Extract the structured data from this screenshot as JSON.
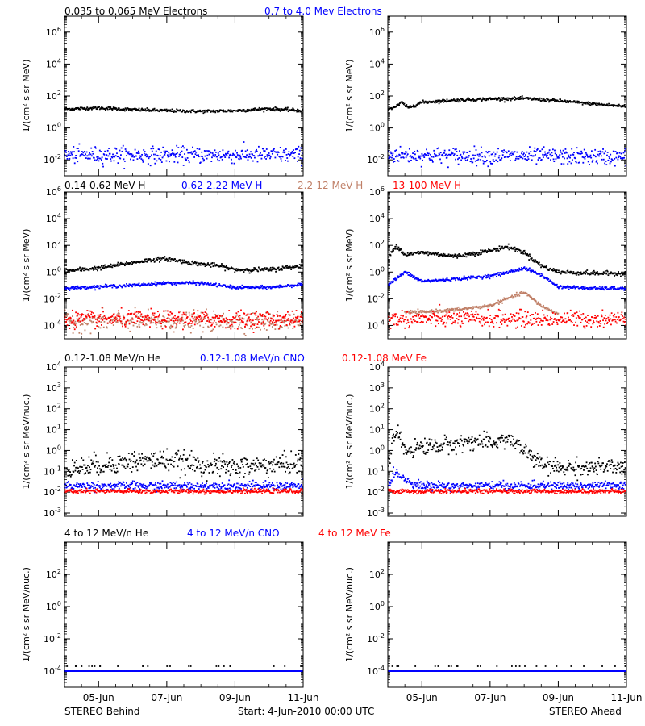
{
  "footer": {
    "left": "STEREO Behind",
    "center": "Start:  4-Jun-2010 00:00 UTC",
    "right": "STEREO Ahead"
  },
  "x_axis": {
    "range": [
      "2010-06-04",
      "2010-06-11"
    ],
    "ticks": [
      "05-Jun",
      "07-Jun",
      "09-Jun",
      "11-Jun"
    ]
  },
  "rows": [
    {
      "ylabel": "1/(cm² s sr MeV)",
      "legend": [
        {
          "text": "0.035 to 0.065 MeV Electrons",
          "color": "#000000"
        },
        {
          "text": "0.7 to 4.0 Mev Electrons",
          "color": "#0000ff"
        }
      ]
    },
    {
      "ylabel": "1/(cm² s sr MeV)",
      "legend": [
        {
          "text": "0.14-0.62 MeV H",
          "color": "#000000"
        },
        {
          "text": "0.62-2.22 MeV H",
          "color": "#0000ff"
        },
        {
          "text": "2.2-12 MeV H",
          "color": "#c08068"
        },
        {
          "text": "13-100 MeV H",
          "color": "#ff0000"
        }
      ]
    },
    {
      "ylabel": "1/(cm² s sr MeV/nuc.)",
      "legend": [
        {
          "text": "0.12-1.08 MeV/n He",
          "color": "#000000"
        },
        {
          "text": "0.12-1.08 MeV/n CNO",
          "color": "#0000ff"
        },
        {
          "text": "0.12-1.08 MeV Fe",
          "color": "#ff0000"
        }
      ]
    },
    {
      "ylabel": "1/(cm² s sr MeV/nuc.)",
      "legend": [
        {
          "text": "4 to 12 MeV/n He",
          "color": "#000000"
        },
        {
          "text": "4 to 12 MeV/n CNO",
          "color": "#0000ff"
        },
        {
          "text": "4 to 12 MeV Fe",
          "color": "#ff0000"
        }
      ]
    }
  ],
  "chart_data": [
    {
      "type": "scatter",
      "panel": "electrons",
      "spacecraft": "STEREO Behind",
      "yscale": "log",
      "ylim": [
        0.001,
        10000000
      ],
      "yticks": [
        {
          "label": "10^-2",
          "value": 0.01
        },
        {
          "label": "10^0",
          "value": 1
        },
        {
          "label": "10^2",
          "value": 100
        },
        {
          "label": "10^4",
          "value": 10000
        },
        {
          "label": "10^6",
          "value": 1000000
        }
      ],
      "series": [
        {
          "name": "0.035 to 0.065 MeV Electrons",
          "color": "#000000",
          "x": [
            "2010-06-04",
            "2010-06-05",
            "2010-06-06",
            "2010-06-07",
            "2010-06-08",
            "2010-06-09",
            "2010-06-10",
            "2010-06-11"
          ],
          "y": [
            15,
            18,
            14,
            12,
            11,
            12,
            16,
            12
          ],
          "noise": 0.05
        },
        {
          "name": "0.7 to 4.0 Mev Electrons",
          "color": "#0000ff",
          "x": [
            "2010-06-04",
            "2010-06-11"
          ],
          "y": [
            0.02,
            0.02
          ],
          "noise": 0.25
        }
      ]
    },
    {
      "type": "scatter",
      "panel": "electrons",
      "spacecraft": "STEREO Ahead",
      "yscale": "log",
      "ylim": [
        0.001,
        10000000
      ],
      "yticks": [
        {
          "label": "10^-2",
          "value": 0.01
        },
        {
          "label": "10^0",
          "value": 1
        },
        {
          "label": "10^2",
          "value": 100
        },
        {
          "label": "10^4",
          "value": 10000
        },
        {
          "label": "10^6",
          "value": 1000000
        }
      ],
      "series": [
        {
          "name": "0.035 to 0.065 MeV Electrons",
          "color": "#000000",
          "x": [
            "2010-06-04",
            "2010-06-04T06:00",
            "2010-06-04T10:00",
            "2010-06-04T14:00",
            "2010-06-05",
            "2010-06-06",
            "2010-06-07",
            "2010-06-08",
            "2010-06-09",
            "2010-06-10",
            "2010-06-11"
          ],
          "y": [
            15,
            22,
            40,
            18,
            40,
            55,
            65,
            70,
            50,
            32,
            22
          ],
          "noise": 0.05
        },
        {
          "name": "0.7 to 4.0 Mev Electrons",
          "color": "#0000ff",
          "x": [
            "2010-06-04",
            "2010-06-11"
          ],
          "y": [
            0.02,
            0.015
          ],
          "noise": 0.25
        }
      ]
    },
    {
      "type": "scatter",
      "panel": "protons",
      "spacecraft": "STEREO Behind",
      "yscale": "log",
      "ylim": [
        1e-05,
        1000000
      ],
      "yticks": [
        {
          "label": "10^-4",
          "value": 0.0001
        },
        {
          "label": "10^-2",
          "value": 0.01
        },
        {
          "label": "10^0",
          "value": 1
        },
        {
          "label": "10^2",
          "value": 100
        },
        {
          "label": "10^4",
          "value": 10000
        },
        {
          "label": "10^6",
          "value": 1000000
        }
      ],
      "series": [
        {
          "name": "0.14-0.62 MeV H",
          "color": "#000000",
          "x": [
            "2010-06-04",
            "2010-06-05",
            "2010-06-06",
            "2010-06-06T12:00",
            "2010-06-07",
            "2010-06-07T12:00",
            "2010-06-08",
            "2010-06-08T12:00",
            "2010-06-09",
            "2010-06-10",
            "2010-06-11"
          ],
          "y": [
            1.2,
            2,
            5,
            8,
            10,
            6,
            4,
            3,
            1.5,
            1.5,
            3
          ],
          "noise": 0.08
        },
        {
          "name": "0.62-2.22 MeV H",
          "color": "#0000ff",
          "x": [
            "2010-06-04",
            "2010-06-05",
            "2010-06-06",
            "2010-06-07",
            "2010-06-08",
            "2010-06-09",
            "2010-06-10",
            "2010-06-11"
          ],
          "y": [
            0.06,
            0.08,
            0.1,
            0.15,
            0.15,
            0.07,
            0.07,
            0.12
          ],
          "noise": 0.06
        },
        {
          "name": "2.2-12 MeV H",
          "color": "#c08068",
          "x": [
            "2010-06-04",
            "2010-06-11"
          ],
          "y": [
            0.0002,
            0.0002
          ],
          "noise": 0.35
        },
        {
          "name": "13-100 MeV H",
          "color": "#ff0000",
          "x": [
            "2010-06-04",
            "2010-06-11"
          ],
          "y": [
            0.0003,
            0.0003
          ],
          "noise": 0.3
        }
      ]
    },
    {
      "type": "scatter",
      "panel": "protons",
      "spacecraft": "STEREO Ahead",
      "yscale": "log",
      "ylim": [
        1e-05,
        1000000
      ],
      "yticks": [
        {
          "label": "10^-4",
          "value": 0.0001
        },
        {
          "label": "10^-2",
          "value": 0.01
        },
        {
          "label": "10^0",
          "value": 1
        },
        {
          "label": "10^2",
          "value": 100
        },
        {
          "label": "10^4",
          "value": 10000
        },
        {
          "label": "10^6",
          "value": 1000000
        }
      ],
      "series": [
        {
          "name": "0.14-0.62 MeV H",
          "color": "#000000",
          "x": [
            "2010-06-04",
            "2010-06-04T06:00",
            "2010-06-04T12:00",
            "2010-06-05",
            "2010-06-06",
            "2010-06-07",
            "2010-06-07T12:00",
            "2010-06-08",
            "2010-06-08T12:00",
            "2010-06-09",
            "2010-06-10",
            "2010-06-11"
          ],
          "y": [
            10,
            100,
            20,
            30,
            15,
            40,
            80,
            30,
            3,
            1,
            0.8,
            0.8
          ],
          "noise": 0.08
        },
        {
          "name": "0.62-2.22 MeV H",
          "color": "#0000ff",
          "x": [
            "2010-06-04",
            "2010-06-04T12:00",
            "2010-06-05",
            "2010-06-06",
            "2010-06-07",
            "2010-06-07T12:00",
            "2010-06-08",
            "2010-06-08T12:00",
            "2010-06-09",
            "2010-06-10",
            "2010-06-11"
          ],
          "y": [
            0.1,
            1,
            0.2,
            0.3,
            0.5,
            0.9,
            2,
            0.6,
            0.08,
            0.06,
            0.06
          ],
          "noise": 0.06
        },
        {
          "name": "2.2-12 MeV H",
          "color": "#c08068",
          "x": [
            "2010-06-04T12:00",
            "2010-06-05",
            "2010-06-06",
            "2010-06-07",
            "2010-06-07T12:00",
            "2010-06-08",
            "2010-06-08T12:00",
            "2010-06-09"
          ],
          "y": [
            0.001,
            0.001,
            0.0015,
            0.003,
            0.01,
            0.03,
            0.003,
            0.0007
          ],
          "noise": 0.06
        },
        {
          "name": "13-100 MeV H",
          "color": "#ff0000",
          "x": [
            "2010-06-04",
            "2010-06-11"
          ],
          "y": [
            0.0003,
            0.0003
          ],
          "noise": 0.3
        }
      ]
    },
    {
      "type": "scatter",
      "panel": "heavy ions 0.12-1.08",
      "spacecraft": "STEREO Behind",
      "yscale": "log",
      "ylim": [
        0.0007,
        10000
      ],
      "yticks": [
        {
          "label": "10^-3",
          "value": 0.001
        },
        {
          "label": "10^-2",
          "value": 0.01
        },
        {
          "label": "10^-1",
          "value": 0.1
        },
        {
          "label": "10^0",
          "value": 1
        },
        {
          "label": "10^1",
          "value": 10
        },
        {
          "label": "10^2",
          "value": 100
        },
        {
          "label": "10^3",
          "value": 1000
        },
        {
          "label": "10^4",
          "value": 10000
        }
      ],
      "series": [
        {
          "name": "0.12-1.08 MeV/n He",
          "color": "#000000",
          "x": [
            "2010-06-04",
            "2010-06-05",
            "2010-06-06",
            "2010-06-07",
            "2010-06-08",
            "2010-06-09",
            "2010-06-10",
            "2010-06-11"
          ],
          "y": [
            0.12,
            0.2,
            0.3,
            0.35,
            0.2,
            0.15,
            0.2,
            0.25
          ],
          "noise": 0.25
        },
        {
          "name": "0.12-1.08 MeV/n CNO",
          "color": "#0000ff",
          "x": [
            "2010-06-04",
            "2010-06-11"
          ],
          "y": [
            0.02,
            0.02
          ],
          "noise": 0.1
        },
        {
          "name": "0.12-1.08 MeV Fe",
          "color": "#ff0000",
          "x": [
            "2010-06-04",
            "2010-06-11"
          ],
          "y": [
            0.011,
            0.011
          ],
          "noise": 0.05
        }
      ]
    },
    {
      "type": "scatter",
      "panel": "heavy ions 0.12-1.08",
      "spacecraft": "STEREO Ahead",
      "yscale": "log",
      "ylim": [
        0.0007,
        10000
      ],
      "yticks": [
        {
          "label": "10^-3",
          "value": 0.001
        },
        {
          "label": "10^-2",
          "value": 0.01
        },
        {
          "label": "10^-1",
          "value": 0.1
        },
        {
          "label": "10^0",
          "value": 1
        },
        {
          "label": "10^1",
          "value": 10
        },
        {
          "label": "10^2",
          "value": 100
        },
        {
          "label": "10^3",
          "value": 1000
        },
        {
          "label": "10^4",
          "value": 10000
        }
      ],
      "series": [
        {
          "name": "0.12-1.08 MeV/n He",
          "color": "#000000",
          "x": [
            "2010-06-04",
            "2010-06-04T06:00",
            "2010-06-04T12:00",
            "2010-06-05",
            "2010-06-06",
            "2010-06-06T12:00",
            "2010-06-07",
            "2010-06-07T12:00",
            "2010-06-08",
            "2010-06-08T12:00",
            "2010-06-09",
            "2010-06-10",
            "2010-06-11"
          ],
          "y": [
            0.2,
            10,
            1,
            1.5,
            2,
            3,
            2,
            4,
            1,
            0.2,
            0.15,
            0.15,
            0.15
          ],
          "noise": 0.2
        },
        {
          "name": "0.12-1.08 MeV/n CNO",
          "color": "#0000ff",
          "x": [
            "2010-06-04",
            "2010-06-04T06:00",
            "2010-06-04T12:00",
            "2010-06-05",
            "2010-06-11"
          ],
          "y": [
            0.02,
            0.1,
            0.04,
            0.02,
            0.02
          ],
          "noise": 0.1
        },
        {
          "name": "0.12-1.08 MeV Fe",
          "color": "#ff0000",
          "x": [
            "2010-06-04",
            "2010-06-11"
          ],
          "y": [
            0.011,
            0.011
          ],
          "noise": 0.05
        }
      ]
    },
    {
      "type": "scatter",
      "panel": "heavy ions 4-12",
      "spacecraft": "STEREO Behind",
      "yscale": "log",
      "ylim": [
        1e-05,
        10000
      ],
      "yticks": [
        {
          "label": "10^-4",
          "value": 0.0001
        },
        {
          "label": "10^-2",
          "value": 0.01
        },
        {
          "label": "10^0",
          "value": 1
        },
        {
          "label": "10^2",
          "value": 100
        }
      ],
      "series": [
        {
          "name": "4 to 12 MeV/n He",
          "color": "#000000",
          "x": [
            "2010-06-04",
            "2010-06-11"
          ],
          "y": [
            0.0002,
            0.0002
          ],
          "noise": 0.0,
          "sparse": true
        },
        {
          "name": "4 to 12 MeV/n CNO",
          "color": "#0000ff",
          "x": [
            "2010-06-04",
            "2010-06-11"
          ],
          "y": [
            0.0001,
            0.0001
          ],
          "noise": 0.0
        },
        {
          "name": "4 to 12 MeV Fe",
          "color": "#ff0000",
          "x": [],
          "y": []
        }
      ]
    },
    {
      "type": "scatter",
      "panel": "heavy ions 4-12",
      "spacecraft": "STEREO Ahead",
      "yscale": "log",
      "ylim": [
        1e-05,
        10000
      ],
      "yticks": [
        {
          "label": "10^-4",
          "value": 0.0001
        },
        {
          "label": "10^-2",
          "value": 0.01
        },
        {
          "label": "10^0",
          "value": 1
        },
        {
          "label": "10^2",
          "value": 100
        }
      ],
      "series": [
        {
          "name": "4 to 12 MeV/n He",
          "color": "#000000",
          "x": [
            "2010-06-04",
            "2010-06-11"
          ],
          "y": [
            0.0002,
            0.0002
          ],
          "noise": 0.0,
          "sparse": true
        },
        {
          "name": "4 to 12 MeV/n CNO",
          "color": "#0000ff",
          "x": [
            "2010-06-04",
            "2010-06-11"
          ],
          "y": [
            0.0001,
            0.0001
          ],
          "noise": 0.0
        },
        {
          "name": "4 to 12 MeV Fe",
          "color": "#ff0000",
          "x": [],
          "y": []
        }
      ]
    }
  ]
}
